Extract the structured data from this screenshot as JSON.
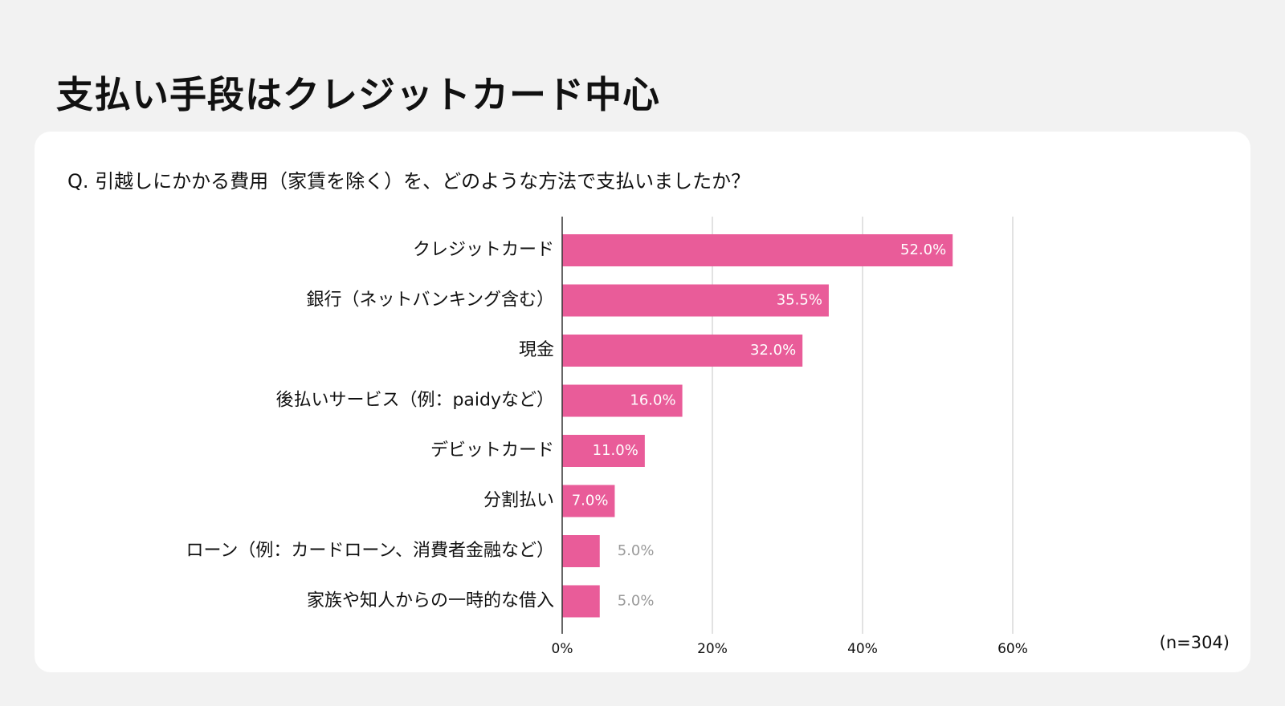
{
  "page_title": "支払い手段はクレジットカード中心",
  "question": "Q. 引越しにかかる費用（家賃を除く）を、どのような方法で支払いましたか？",
  "colors": {
    "bar": "#e95c99",
    "inside_label": "#ffffff",
    "outside_label": "#9a9a9a",
    "grid": "#d9d9d9",
    "axis": "#333333"
  },
  "chart_data": {
    "type": "bar",
    "orientation": "horizontal",
    "title": "Q. 引越しにかかる費用（家賃を除く）を、どのような方法で支払いましたか？",
    "categories": [
      "クレジットカード",
      "銀行（ネットバンキング含む）",
      "現金",
      "後払いサービス（例：paidyなど）",
      "デビットカード",
      "分割払い",
      "ローン（例：カードローン、消費者金融など）",
      "家族や知人からの一時的な借入"
    ],
    "values": [
      52.0,
      35.5,
      32.0,
      16.0,
      11.0,
      7.0,
      5.0,
      5.0
    ],
    "value_labels": [
      "52.0%",
      "35.5%",
      "32.0%",
      "16.0%",
      "11.0%",
      "7.0%",
      "5.0%",
      "5.0%"
    ],
    "xlim": [
      0,
      60
    ],
    "ticks": [
      0,
      20,
      40,
      60
    ],
    "tick_labels": [
      "0%",
      "20%",
      "40%",
      "60%"
    ],
    "xlabel": "",
    "ylabel": "",
    "grid": true,
    "note": "(n=304)"
  }
}
